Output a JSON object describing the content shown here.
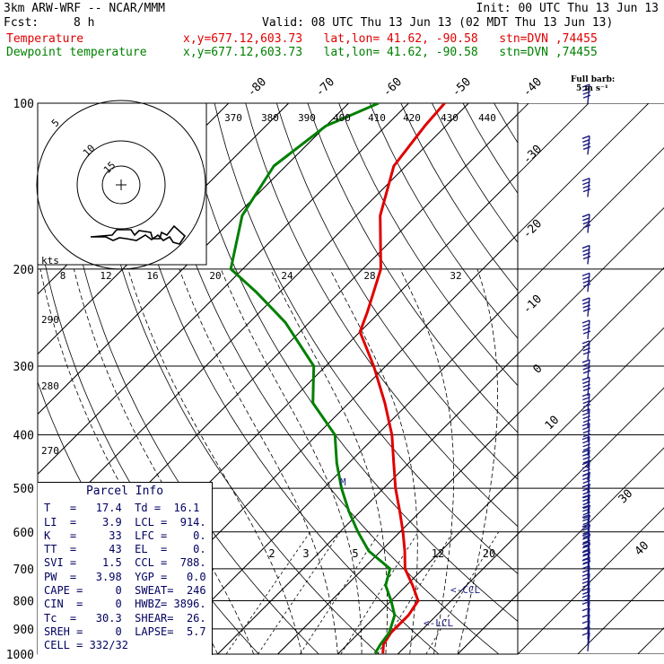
{
  "header": {
    "model": "3km ARW-WRF -- NCAR/MMM",
    "init": "Init: 00 UTC Thu 13 Jun 13",
    "fcst_label": "Fcst:",
    "fcst_value": "8 h",
    "valid": "Valid: 08 UTC Thu 13 Jun 13 (02 MDT Thu 13 Jun 13)",
    "temp_label": "Temperature",
    "dew_label": "Dewpoint temperature",
    "location": "x,y=677.12,603.73   lat,lon= 41.62, -90.58   stn=DVN ,74455"
  },
  "barb_legend": {
    "title": "Full barb:",
    "unit": "5 m s⁻¹"
  },
  "hodograph": {
    "kts_label": "kts",
    "ring_labels": [
      "5",
      "10",
      "15"
    ]
  },
  "inset_axis_labels": [
    "8",
    "12",
    "16",
    "20",
    "24",
    "28",
    "32"
  ],
  "pressure_labels": [
    "100",
    "200",
    "300",
    "400",
    "500",
    "600",
    "700",
    "800",
    "900",
    "1000"
  ],
  "isotherm_labels": [
    "-80",
    "-70",
    "-60",
    "-50",
    "-40",
    "-30",
    "-20",
    "-10",
    "0",
    "10",
    "30",
    "40"
  ],
  "theta_top_labels": [
    "370",
    "380",
    "390",
    "400",
    "410",
    "420",
    "430",
    "440"
  ],
  "theta_left_labels": [
    "290",
    "280",
    "270"
  ],
  "mixing_ratio_labels": [
    "2",
    "3",
    "5",
    "12",
    "20"
  ],
  "annotations": {
    "lcl": "<-LCL",
    "ccl": "<-CCL",
    "m_label": "M"
  },
  "parcel": {
    "title": "Parcel Info",
    "rows": [
      "T   =   17.4  Td =  16.1",
      "LI  =    3.9  LCL =  914.",
      "K   =     33  LFC =    0.",
      "TT  =     43  EL  =    0.",
      "SVI =    1.5  CCL =  788.",
      "PW  =   3.98  YGP =   0.0",
      "CAPE =     0  SWEAT=  246",
      "CIN  =     0  HWBZ= 3896.",
      "Tc  =   30.3  SHEAR=  26.",
      "SREH =     0  LAPSE=  5.7",
      "CELL = 332/32"
    ]
  },
  "colors": {
    "temperature": "#e00000",
    "dewpoint": "#008000",
    "barbs": "#1a1a80",
    "grid": "#000000"
  },
  "chart_data": {
    "type": "line",
    "title": "",
    "xlabel": "",
    "ylabel": "",
    "pressure_levels_hPa": [
      100,
      200,
      300,
      400,
      500,
      600,
      700,
      800,
      900,
      1000
    ],
    "pressure_axis": "log",
    "pressure_range": [
      100,
      1000
    ],
    "temperature_range_at_1000hPa": [
      -40,
      40
    ],
    "series": [
      {
        "name": "Temperature",
        "unit": "C",
        "points": [
          {
            "p": 997,
            "t": 17.4
          },
          {
            "p": 960,
            "t": 16.0
          },
          {
            "p": 914,
            "t": 15.3
          },
          {
            "p": 850,
            "t": 15.3
          },
          {
            "p": 800,
            "t": 14.5
          },
          {
            "p": 750,
            "t": 11.0
          },
          {
            "p": 700,
            "t": 7.0
          },
          {
            "p": 650,
            "t": 4.0
          },
          {
            "p": 600,
            "t": 0.5
          },
          {
            "p": 550,
            "t": -3.5
          },
          {
            "p": 500,
            "t": -8.0
          },
          {
            "p": 450,
            "t": -12.5
          },
          {
            "p": 400,
            "t": -17.5
          },
          {
            "p": 350,
            "t": -24.0
          },
          {
            "p": 300,
            "t": -32.0
          },
          {
            "p": 260,
            "t": -40.0
          },
          {
            "p": 240,
            "t": -42.0
          },
          {
            "p": 200,
            "t": -47.0
          },
          {
            "p": 160,
            "t": -56.0
          },
          {
            "p": 130,
            "t": -62.0
          },
          {
            "p": 110,
            "t": -63.5
          },
          {
            "p": 100,
            "t": -64.0
          }
        ]
      },
      {
        "name": "Dewpoint temperature",
        "unit": "C",
        "points": [
          {
            "p": 997,
            "t": 16.1
          },
          {
            "p": 960,
            "t": 15.5
          },
          {
            "p": 914,
            "t": 15.0
          },
          {
            "p": 850,
            "t": 13.0
          },
          {
            "p": 800,
            "t": 10.0
          },
          {
            "p": 750,
            "t": 6.5
          },
          {
            "p": 700,
            "t": 4.5
          },
          {
            "p": 650,
            "t": -2.0
          },
          {
            "p": 600,
            "t": -7.0
          },
          {
            "p": 550,
            "t": -12.0
          },
          {
            "p": 500,
            "t": -17.0
          },
          {
            "p": 450,
            "t": -22.0
          },
          {
            "p": 400,
            "t": -27.0
          },
          {
            "p": 350,
            "t": -36.0
          },
          {
            "p": 300,
            "t": -42.0
          },
          {
            "p": 250,
            "t": -54.0
          },
          {
            "p": 220,
            "t": -64.0
          },
          {
            "p": 200,
            "t": -72.0
          },
          {
            "p": 160,
            "t": -79.0
          },
          {
            "p": 130,
            "t": -82.0
          },
          {
            "p": 110,
            "t": -80.0
          },
          {
            "p": 100,
            "t": -75.0
          }
        ]
      }
    ]
  }
}
